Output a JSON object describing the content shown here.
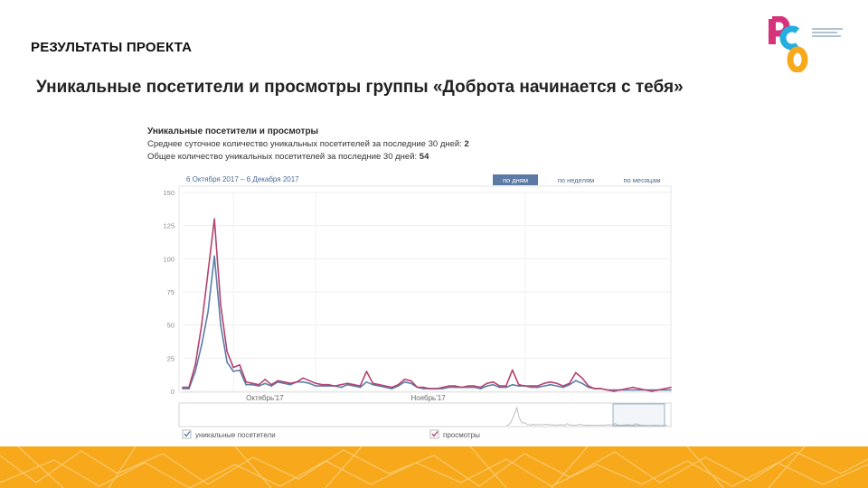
{
  "header": {
    "section_title": "РЕЗУЛЬТАТЫ ПРОЕКТА",
    "subtitle": "Уникальные посетители и просмотры группы «Доброта начинается с тебя»"
  },
  "stats": {
    "heading": "Уникальные посетители и просмотры",
    "avg_label": "Среднее суточное количество уникальных посетителей за последние 30 дней:",
    "avg_value": "2",
    "total_label": "Общее количество уникальных посетителей за последние 30 дней:",
    "total_value": "54"
  },
  "controls": {
    "date_range": "6 Октября 2017 – 6 Декабря 2017",
    "tabs": [
      {
        "label": "по дням",
        "active": true
      },
      {
        "label": "по неделям",
        "active": false
      },
      {
        "label": "по месяцам",
        "active": false
      }
    ]
  },
  "chart_data": {
    "type": "line",
    "ylim": [
      0,
      150
    ],
    "yticks": [
      "150",
      "125",
      "100",
      "75",
      "50",
      "25",
      "0"
    ],
    "month_labels": [
      "Октябрь'17",
      "Ноябрь'17"
    ],
    "grid": true,
    "legend_position": "bottom",
    "series": [
      {
        "name": "уникальные посетители",
        "color": "#5a7fa8",
        "values": [
          2,
          2,
          15,
          35,
          60,
          102,
          50,
          22,
          15,
          16,
          5,
          5,
          4,
          6,
          4,
          7,
          6,
          5,
          7,
          7,
          6,
          4,
          4,
          4,
          4,
          3,
          5,
          4,
          3,
          7,
          5,
          4,
          3,
          2,
          4,
          7,
          6,
          3,
          2,
          2,
          2,
          2,
          3,
          3,
          3,
          3,
          3,
          2,
          4,
          5,
          3,
          3,
          5,
          4,
          4,
          3,
          3,
          4,
          5,
          4,
          3,
          5,
          8,
          6,
          3,
          2,
          2,
          1,
          1,
          1,
          1,
          1,
          1,
          1,
          1,
          1,
          1,
          1
        ]
      },
      {
        "name": "просмотры",
        "color": "#b5426f",
        "values": [
          3,
          3,
          20,
          50,
          90,
          130,
          65,
          30,
          18,
          20,
          7,
          6,
          5,
          9,
          5,
          8,
          7,
          6,
          7,
          10,
          8,
          6,
          5,
          5,
          4,
          5,
          6,
          5,
          4,
          15,
          6,
          5,
          4,
          3,
          5,
          9,
          8,
          3,
          3,
          2,
          2,
          3,
          4,
          4,
          3,
          4,
          4,
          3,
          6,
          7,
          4,
          4,
          16,
          5,
          4,
          4,
          4,
          6,
          7,
          6,
          4,
          6,
          14,
          10,
          4,
          2,
          2,
          1,
          0,
          1,
          2,
          3,
          2,
          1,
          0,
          1,
          2,
          3
        ]
      }
    ]
  },
  "colors": {
    "accent_orange": "#f7a81b",
    "tab_active": "#5b7aa4",
    "tab_text": "#4a6b96"
  }
}
